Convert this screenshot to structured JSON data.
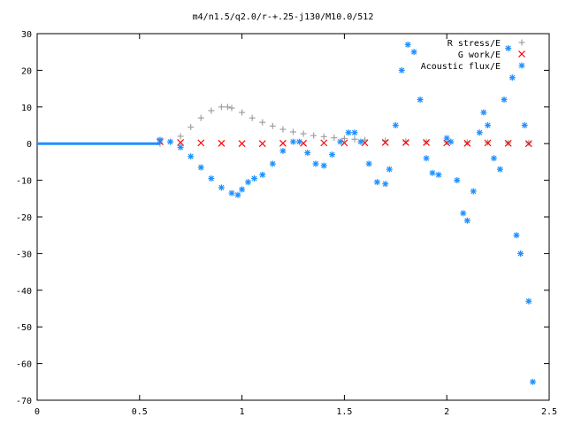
{
  "chart_data": {
    "type": "scatter",
    "title": "m4/n1.5/q2.0/r-+.25-j130/M10.0/512",
    "xlabel": "",
    "ylabel": "",
    "xlim": [
      0,
      2.5
    ],
    "ylim": [
      -70,
      30
    ],
    "xticks": [
      "0",
      "0.5",
      "1",
      "1.5",
      "2",
      "2.5"
    ],
    "yticks": [
      "30",
      "20",
      "10",
      "0",
      "-10",
      "-20",
      "-30",
      "-40",
      "-50",
      "-60",
      "-70"
    ],
    "grid": false,
    "legend_position": "top-right",
    "series": [
      {
        "name": "R stress/E",
        "marker": "+",
        "color": "#a0a0a0",
        "x": [
          0.6,
          0.65,
          0.7,
          0.75,
          0.8,
          0.85,
          0.9,
          0.93,
          0.95,
          1.0,
          1.05,
          1.1,
          1.15,
          1.2,
          1.25,
          1.3,
          1.35,
          1.4,
          1.45,
          1.5,
          1.55,
          1.6,
          1.7,
          1.8,
          1.9,
          2.0,
          2.1,
          2.2,
          2.3,
          2.4
        ],
        "y": [
          0.0,
          0.5,
          2.0,
          4.5,
          7.0,
          9.0,
          10.0,
          10.0,
          9.7,
          8.5,
          7.0,
          5.8,
          4.8,
          3.9,
          3.2,
          2.7,
          2.2,
          1.9,
          1.6,
          1.4,
          1.2,
          1.0,
          0.8,
          0.6,
          0.5,
          0.4,
          0.3,
          0.3,
          0.2,
          0.2
        ]
      },
      {
        "name": "G work/E",
        "marker": "x",
        "color": "#ff0000",
        "x": [
          0.6,
          0.7,
          0.8,
          0.9,
          1.0,
          1.1,
          1.2,
          1.3,
          1.4,
          1.5,
          1.6,
          1.7,
          1.8,
          1.9,
          2.0,
          2.1,
          2.2,
          2.3,
          2.4
        ],
        "y": [
          0.5,
          0.3,
          0.2,
          0.1,
          0.0,
          0.0,
          0.1,
          0.1,
          0.2,
          0.2,
          0.2,
          0.3,
          0.3,
          0.3,
          0.2,
          0.1,
          0.2,
          0.1,
          0.0
        ]
      },
      {
        "name": "Acoustic flux/E",
        "marker": "*",
        "color": "#1e90ff",
        "x": [
          0.6,
          0.65,
          0.7,
          0.75,
          0.8,
          0.85,
          0.9,
          0.95,
          0.98,
          1.0,
          1.03,
          1.06,
          1.1,
          1.15,
          1.2,
          1.25,
          1.28,
          1.32,
          1.36,
          1.4,
          1.44,
          1.48,
          1.52,
          1.55,
          1.58,
          1.62,
          1.66,
          1.7,
          1.72,
          1.75,
          1.78,
          1.81,
          1.84,
          1.87,
          1.9,
          1.93,
          1.96,
          2.0,
          2.02,
          2.05,
          2.08,
          2.1,
          2.13,
          2.16,
          2.18,
          2.2,
          2.23,
          2.26,
          2.28,
          2.3,
          2.32,
          2.34,
          2.36,
          2.38,
          2.4,
          2.42
        ],
        "y": [
          1.0,
          0.5,
          -1.0,
          -3.5,
          -6.5,
          -9.5,
          -12.0,
          -13.5,
          -14.0,
          -12.5,
          -10.5,
          -9.5,
          -8.5,
          -5.5,
          -2.0,
          0.5,
          0.5,
          -2.5,
          -5.5,
          -6.0,
          -3.0,
          0.5,
          3.0,
          3.0,
          0.5,
          -5.5,
          -10.5,
          -11.0,
          -7.0,
          5.0,
          20.0,
          27.0,
          25.0,
          12.0,
          -4.0,
          -8.0,
          -8.5,
          1.5,
          0.5,
          -10.0,
          -19.0,
          -21.0,
          -13.0,
          3.0,
          8.5,
          5.0,
          -4.0,
          -7.0,
          12.0,
          26.0,
          18.0,
          -25.0,
          -30.0,
          5.0,
          -43.0,
          -65.0
        ]
      }
    ]
  }
}
